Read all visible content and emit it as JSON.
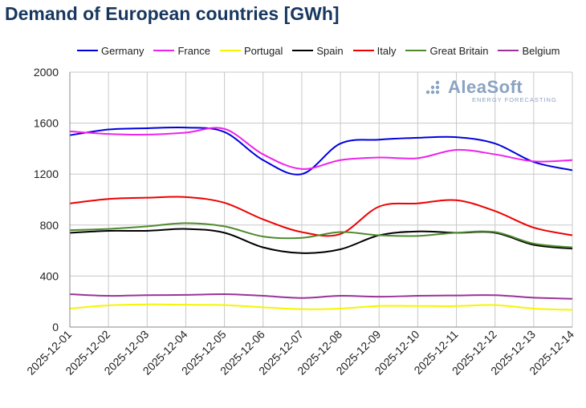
{
  "title": "Demand of European countries [GWh]",
  "watermark": {
    "name": "AleaSoft",
    "sub": "ENERGY FORECASTING"
  },
  "colors": {
    "grid": "#c8c8c8",
    "axis": "#888888",
    "watermark": "#8aa3c2"
  },
  "chart_data": {
    "type": "line",
    "title": "Demand of European countries [GWh]",
    "xlabel": "",
    "ylabel": "",
    "ylim": [
      0,
      2000
    ],
    "yticks": [
      0,
      400,
      800,
      1200,
      1600,
      2000
    ],
    "grid": true,
    "legend_position": "top",
    "x": [
      "2025-12-01",
      "2025-12-02",
      "2025-12-03",
      "2025-12-04",
      "2025-12-05",
      "2025-12-06",
      "2025-12-07",
      "2025-12-08",
      "2025-12-09",
      "2025-12-10",
      "2025-12-11",
      "2025-12-12",
      "2025-12-13",
      "2025-12-14"
    ],
    "series": [
      {
        "name": "Germany",
        "color": "#0000dd",
        "values": [
          1505,
          1550,
          1560,
          1565,
          1530,
          1310,
          1200,
          1440,
          1470,
          1485,
          1490,
          1440,
          1295,
          1230
        ]
      },
      {
        "name": "France",
        "color": "#ee22ee",
        "values": [
          1535,
          1515,
          1510,
          1525,
          1555,
          1355,
          1240,
          1310,
          1330,
          1325,
          1390,
          1355,
          1300,
          1310
        ]
      },
      {
        "name": "Portugal",
        "color": "#f5f500",
        "values": [
          145,
          170,
          178,
          175,
          172,
          155,
          140,
          145,
          165,
          165,
          165,
          172,
          145,
          135
        ]
      },
      {
        "name": "Spain",
        "color": "#000000",
        "values": [
          740,
          755,
          755,
          770,
          740,
          625,
          580,
          610,
          720,
          750,
          740,
          740,
          645,
          615
        ]
      },
      {
        "name": "Italy",
        "color": "#ee0000",
        "values": [
          970,
          1005,
          1015,
          1020,
          975,
          845,
          745,
          730,
          945,
          970,
          995,
          910,
          780,
          720
        ]
      },
      {
        "name": "Great Britain",
        "color": "#4f8a2e",
        "values": [
          760,
          770,
          790,
          815,
          790,
          710,
          700,
          745,
          720,
          715,
          740,
          745,
          655,
          625
        ]
      },
      {
        "name": "Belgium",
        "color": "#993399",
        "values": [
          258,
          245,
          250,
          252,
          258,
          245,
          228,
          245,
          238,
          245,
          248,
          250,
          230,
          222
        ]
      }
    ]
  }
}
